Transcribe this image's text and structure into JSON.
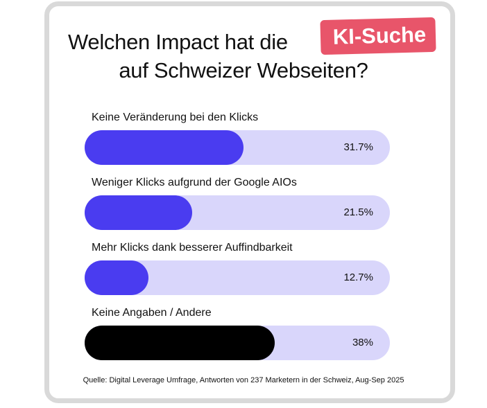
{
  "title": {
    "line1": "Welchen Impact hat die",
    "highlight": "KI-Suche",
    "line2": "auf Schweizer Webseiten?"
  },
  "colors": {
    "bar_fill": "#4a3cf0",
    "bar_track": "#d9d6fb",
    "highlight_bar": "#000000",
    "badge": "#e8556a",
    "border": "#d9d9d9"
  },
  "chart_data": {
    "type": "bar",
    "orientation": "horizontal",
    "categories": [
      "Keine Veränderung bei den Klicks",
      "Weniger Klicks aufgrund der Google AIOs",
      "Mehr Klicks dank besserer Auffindbarkeit",
      "Keine Angaben / Andere"
    ],
    "values": [
      31.7,
      21.5,
      12.7,
      38
    ],
    "value_labels": [
      "31.7%",
      "21.5%",
      "12.7%",
      "38%"
    ],
    "xlim": [
      0,
      61
    ]
  },
  "source": "Quelle: Digital Leverage Umfrage, Antworten von 237 Marketern in der Schweiz, Aug-Sep 2025"
}
